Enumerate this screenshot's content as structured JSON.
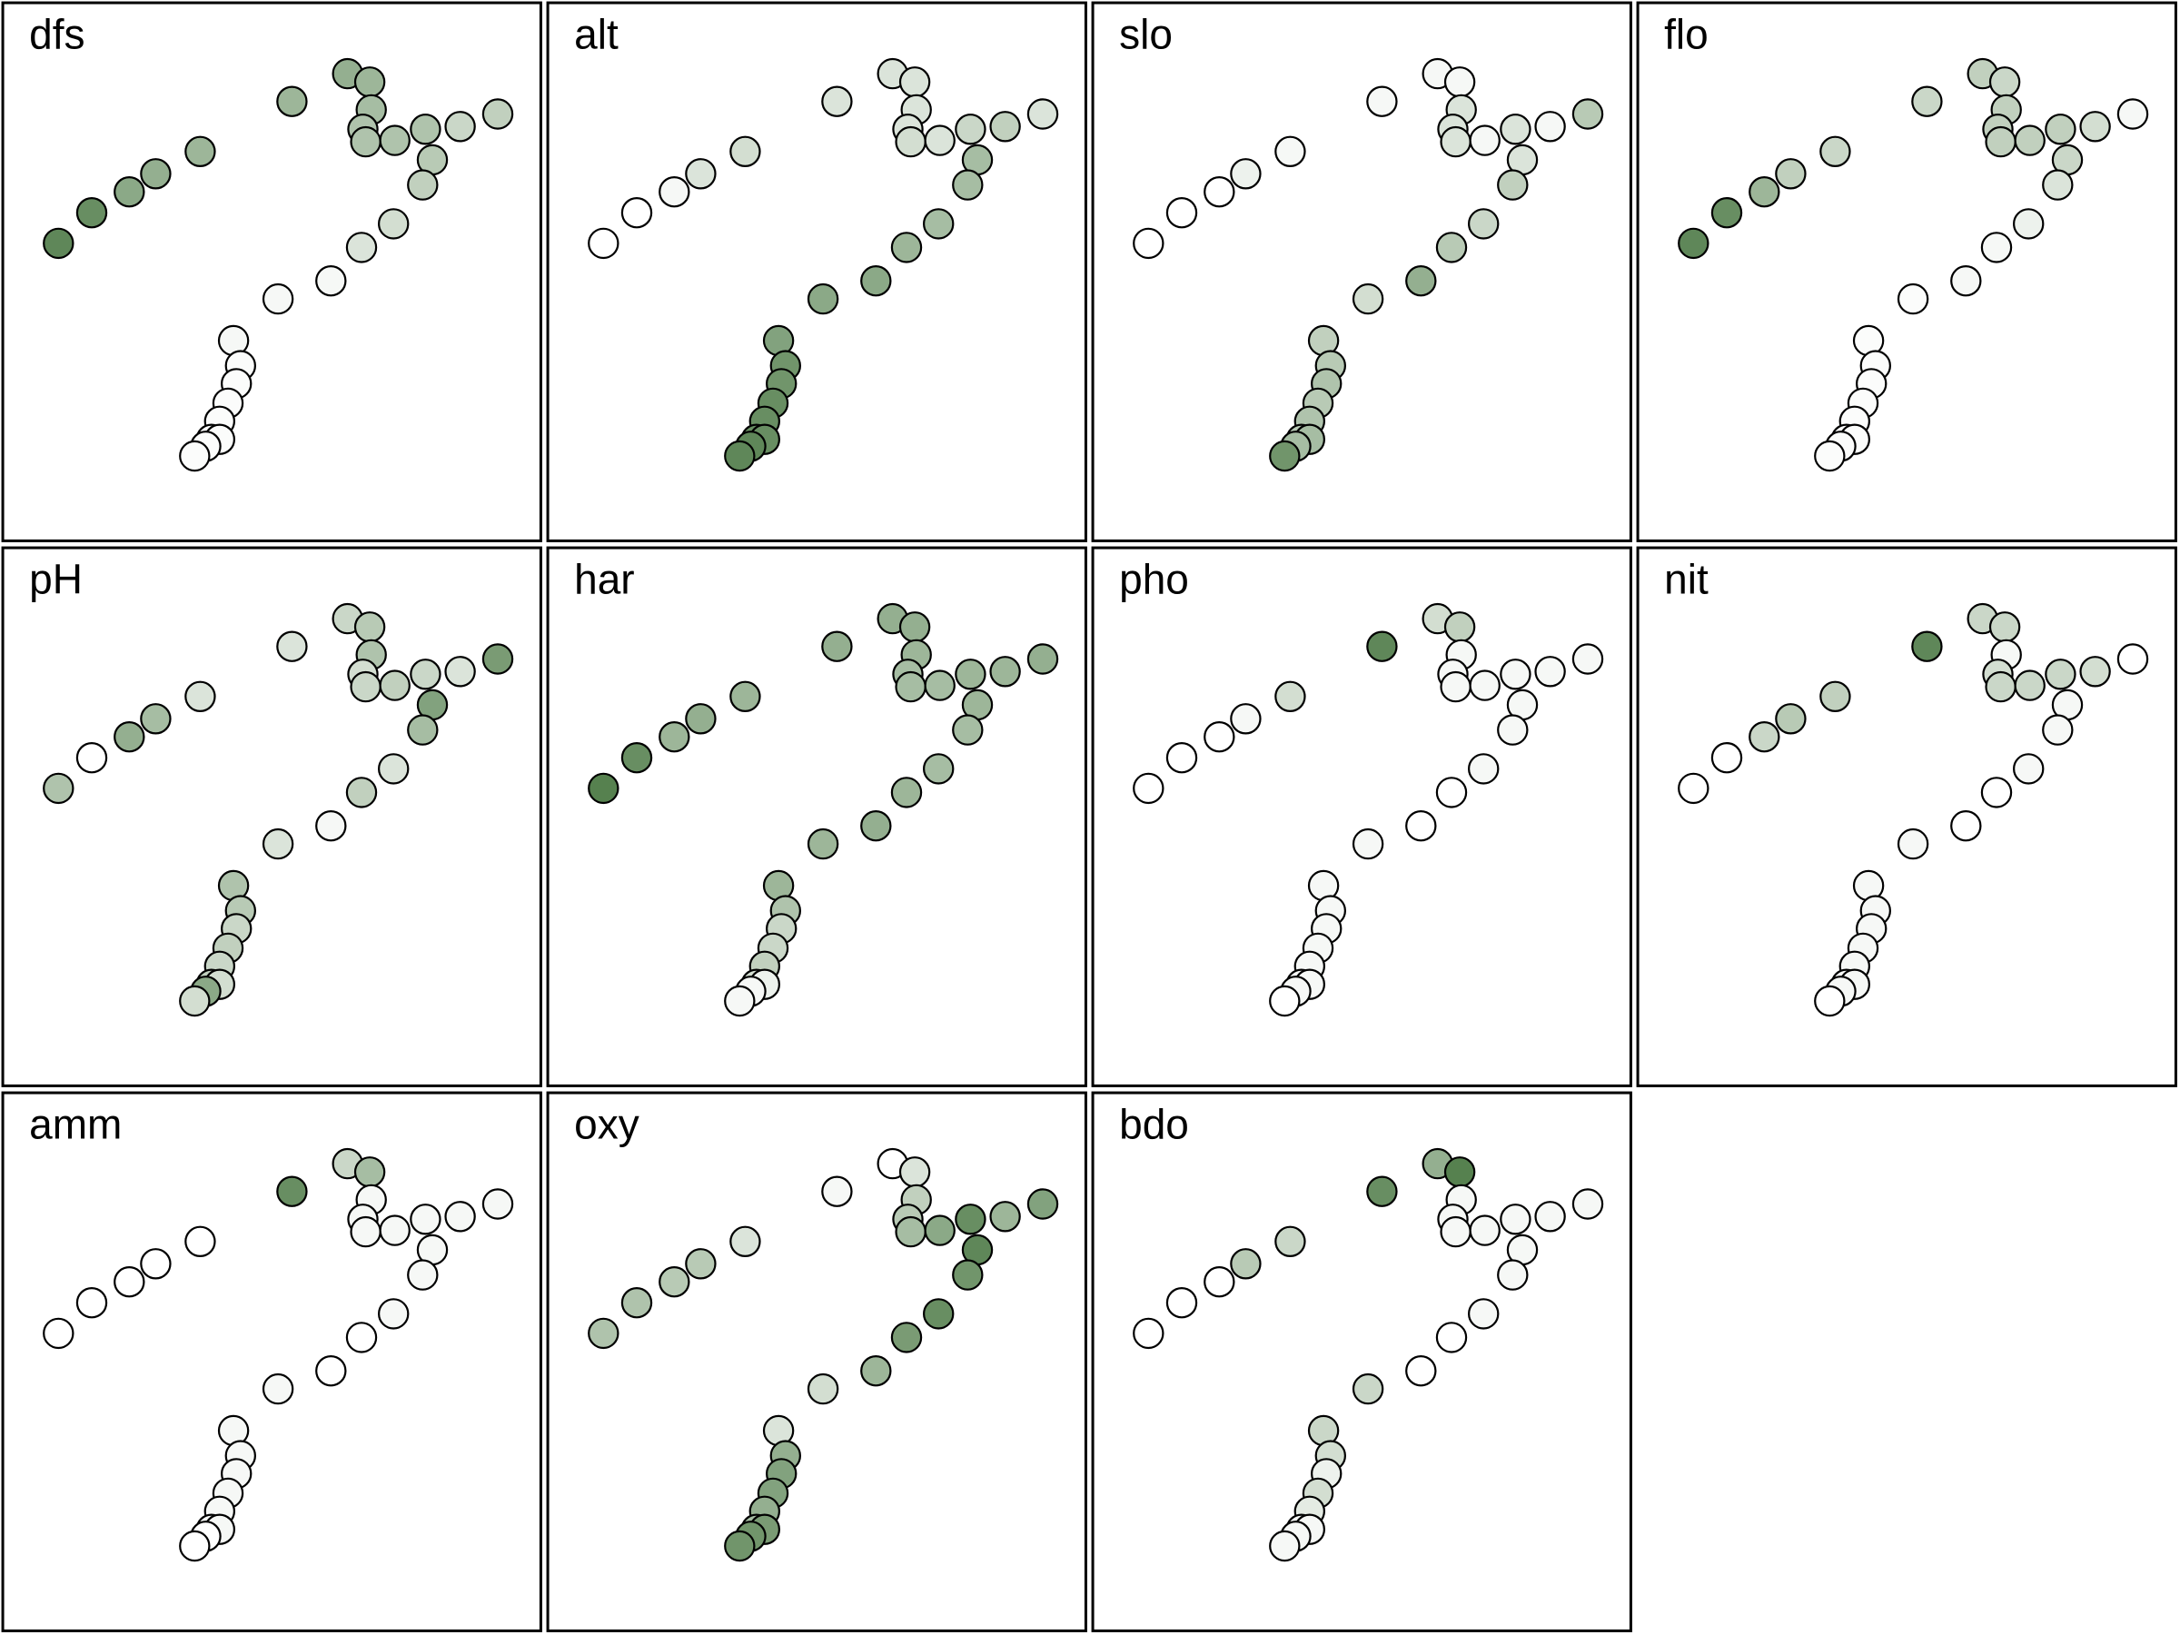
{
  "chart_data": {
    "type": "scatter",
    "description_scale": "fill shade encodes value 0 (white) to 1 (dark green)",
    "color_low": "#ffffff",
    "color_high": "#4d7a46",
    "site_coordinates": {
      "x": [
        42,
        66,
        93,
        112,
        144,
        210,
        250,
        266,
        267,
        261,
        263,
        284,
        306,
        311,
        304,
        283,
        260,
        238,
        200,
        168,
        173,
        170,
        164,
        158,
        152,
        158,
        148,
        140,
        331,
        358
      ],
      "y": [
        175,
        153,
        138,
        125,
        109,
        73,
        53,
        59,
        79,
        93,
        102,
        101,
        93,
        115,
        133,
        161,
        178,
        202,
        215,
        245,
        263,
        276,
        290,
        303,
        316,
        316,
        321,
        328,
        91,
        82
      ]
    },
    "panels": [
      {
        "title": "dfs",
        "values": [
          0.9,
          0.85,
          0.65,
          0.6,
          0.55,
          0.55,
          0.6,
          0.55,
          0.5,
          0.45,
          0.45,
          0.45,
          0.45,
          0.4,
          0.35,
          0.25,
          0.2,
          0.05,
          0.05,
          0.05,
          0.02,
          0.02,
          0.02,
          0.02,
          0.02,
          0.02,
          0.02,
          0.02,
          0.3,
          0.35
        ]
      },
      {
        "title": "alt",
        "values": [
          0.0,
          0.0,
          0.05,
          0.2,
          0.25,
          0.2,
          0.2,
          0.2,
          0.2,
          0.2,
          0.25,
          0.2,
          0.3,
          0.5,
          0.5,
          0.5,
          0.55,
          0.65,
          0.65,
          0.7,
          0.8,
          0.8,
          0.85,
          0.85,
          0.85,
          0.85,
          0.9,
          0.9,
          0.35,
          0.2
        ]
      },
      {
        "title": "slo",
        "values": [
          0.0,
          0.0,
          0.0,
          0.1,
          0.05,
          0.05,
          0.05,
          0.05,
          0.2,
          0.2,
          0.2,
          0.05,
          0.2,
          0.2,
          0.35,
          0.3,
          0.4,
          0.6,
          0.25,
          0.35,
          0.4,
          0.45,
          0.4,
          0.45,
          0.4,
          0.5,
          0.5,
          0.8,
          0.05,
          0.4
        ]
      },
      {
        "title": "flo",
        "values": [
          0.9,
          0.85,
          0.55,
          0.35,
          0.3,
          0.3,
          0.35,
          0.3,
          0.35,
          0.35,
          0.35,
          0.35,
          0.35,
          0.3,
          0.2,
          0.1,
          0.05,
          0.05,
          0.02,
          0.02,
          0.02,
          0.02,
          0.02,
          0.02,
          0.02,
          0.02,
          0.02,
          0.02,
          0.25,
          0.05
        ]
      },
      {
        "title": "pH",
        "values": [
          0.45,
          0.0,
          0.6,
          0.5,
          0.2,
          0.2,
          0.3,
          0.4,
          0.45,
          0.25,
          0.3,
          0.35,
          0.3,
          0.7,
          0.5,
          0.2,
          0.35,
          0.05,
          0.2,
          0.45,
          0.4,
          0.3,
          0.35,
          0.3,
          0.35,
          0.25,
          0.65,
          0.25,
          0.2,
          0.75
        ]
      },
      {
        "title": "har",
        "values": [
          0.95,
          0.85,
          0.55,
          0.6,
          0.55,
          0.6,
          0.6,
          0.6,
          0.55,
          0.5,
          0.5,
          0.5,
          0.55,
          0.55,
          0.5,
          0.5,
          0.55,
          0.6,
          0.55,
          0.55,
          0.45,
          0.3,
          0.3,
          0.35,
          0.25,
          0.1,
          0.05,
          0.05,
          0.55,
          0.6
        ]
      },
      {
        "title": "pho",
        "values": [
          0.0,
          0.0,
          0.0,
          0.05,
          0.25,
          0.9,
          0.25,
          0.35,
          0.05,
          0.05,
          0.05,
          0.05,
          0.05,
          0.05,
          0.05,
          0.05,
          0.0,
          0.0,
          0.05,
          0.05,
          0.05,
          0.05,
          0.05,
          0.05,
          0.05,
          0.05,
          0.05,
          0.0,
          0.05,
          0.05
        ]
      },
      {
        "title": "nit",
        "values": [
          0.0,
          0.0,
          0.3,
          0.4,
          0.35,
          0.9,
          0.3,
          0.3,
          0.05,
          0.25,
          0.3,
          0.3,
          0.3,
          0.05,
          0.05,
          0.05,
          0.0,
          0.0,
          0.05,
          0.05,
          0.05,
          0.05,
          0.05,
          0.05,
          0.05,
          0.05,
          0.05,
          0.0,
          0.25,
          0.0
        ]
      },
      {
        "title": "amm",
        "values": [
          0.0,
          0.0,
          0.0,
          0.0,
          0.0,
          0.85,
          0.3,
          0.5,
          0.05,
          0.05,
          0.05,
          0.05,
          0.05,
          0.05,
          0.05,
          0.05,
          0.0,
          0.0,
          0.05,
          0.05,
          0.05,
          0.05,
          0.05,
          0.05,
          0.05,
          0.05,
          0.0,
          0.0,
          0.05,
          0.05
        ]
      },
      {
        "title": "oxy",
        "values": [
          0.45,
          0.45,
          0.4,
          0.4,
          0.2,
          0.05,
          0.0,
          0.2,
          0.35,
          0.4,
          0.5,
          0.65,
          0.85,
          0.9,
          0.8,
          0.85,
          0.75,
          0.55,
          0.25,
          0.2,
          0.6,
          0.7,
          0.7,
          0.6,
          0.5,
          0.75,
          0.8,
          0.8,
          0.55,
          0.7
        ]
      },
      {
        "title": "bdo",
        "values": [
          0.0,
          0.0,
          0.0,
          0.4,
          0.3,
          0.85,
          0.6,
          0.95,
          0.05,
          0.05,
          0.05,
          0.05,
          0.05,
          0.05,
          0.05,
          0.05,
          0.0,
          0.0,
          0.3,
          0.3,
          0.25,
          0.1,
          0.25,
          0.15,
          0.05,
          0.05,
          0.05,
          0.05,
          0.05,
          0.05
        ]
      }
    ]
  }
}
